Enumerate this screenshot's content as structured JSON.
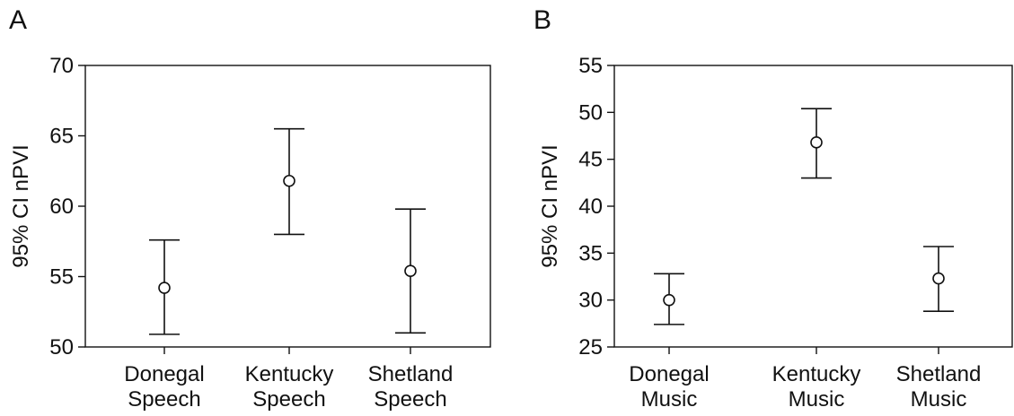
{
  "chart_data": [
    {
      "type": "errorbar",
      "panel_label": "A",
      "ylabel": "95% CI nPVI",
      "xlabel": "",
      "ylim": [
        50,
        70
      ],
      "yticks": [
        50,
        55,
        60,
        65,
        70
      ],
      "categories": [
        [
          "Donegal",
          "Speech"
        ],
        [
          "Kentucky",
          "Speech"
        ],
        [
          "Shetland",
          "Speech"
        ]
      ],
      "means": [
        54.2,
        61.8,
        55.4
      ],
      "lower": [
        50.9,
        58.0,
        51.0
      ],
      "upper": [
        57.6,
        65.5,
        59.8
      ],
      "grid": false
    },
    {
      "type": "errorbar",
      "panel_label": "B",
      "ylabel": "95% CI nPVI",
      "xlabel": "",
      "ylim": [
        25,
        55
      ],
      "yticks": [
        25,
        30,
        35,
        40,
        45,
        50,
        55
      ],
      "categories": [
        [
          "Donegal",
          "Music"
        ],
        [
          "Kentucky",
          "Music"
        ],
        [
          "Shetland",
          "Music"
        ]
      ],
      "means": [
        30.0,
        46.8,
        32.3
      ],
      "lower": [
        27.4,
        43.0,
        28.8
      ],
      "upper": [
        32.8,
        50.4,
        35.7
      ],
      "grid": false
    }
  ]
}
